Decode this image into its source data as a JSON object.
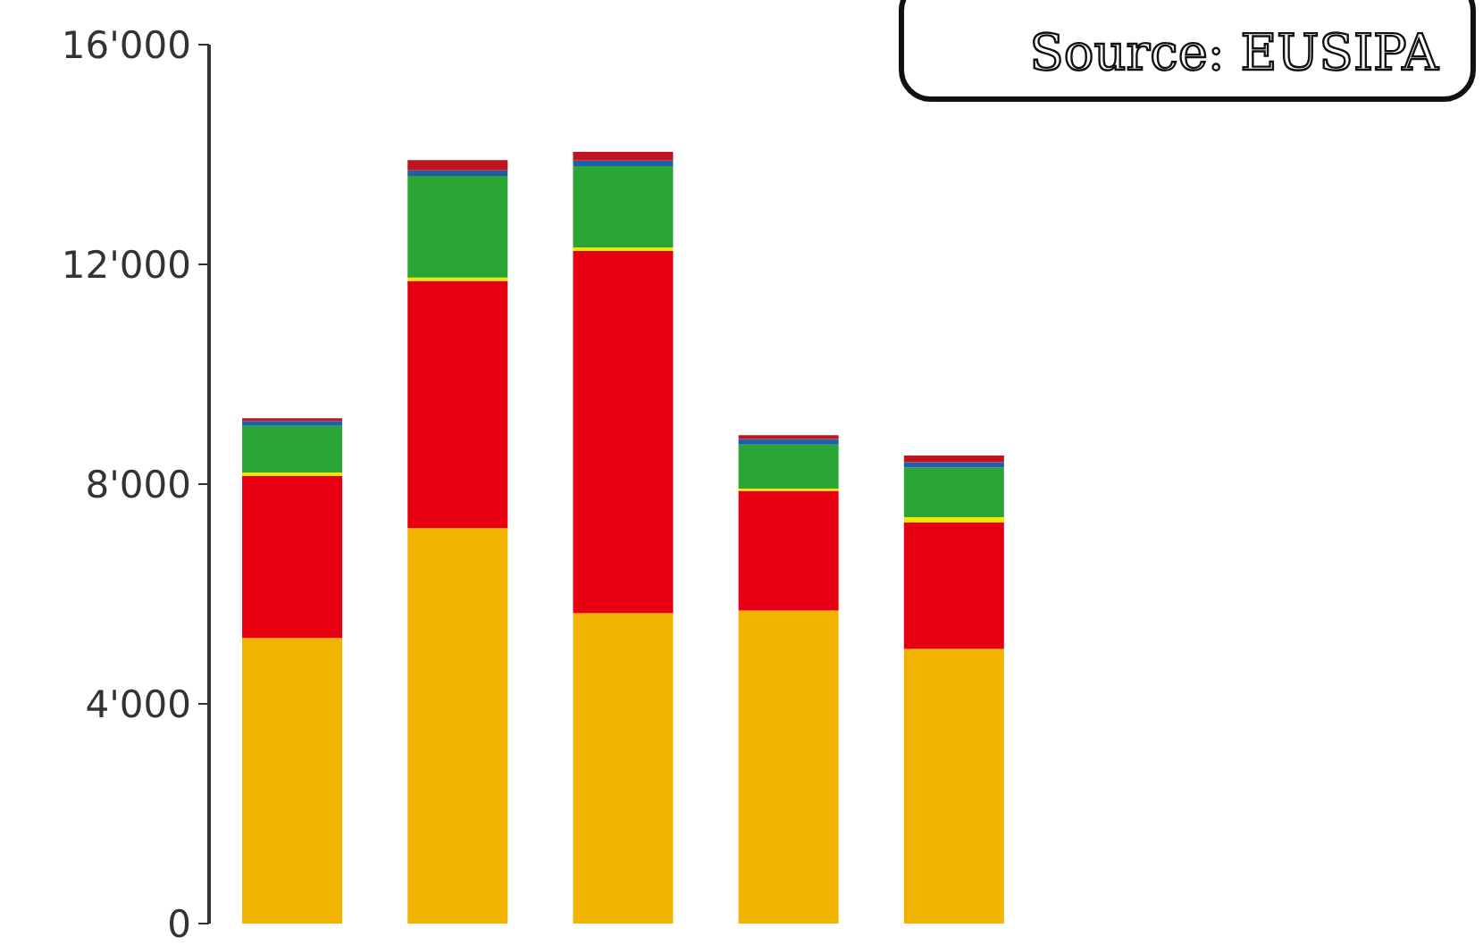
{
  "chart_data": {
    "type": "bar",
    "stacked": true,
    "categories": [
      null,
      null,
      null,
      null,
      null
    ],
    "series": [
      {
        "color": "#f0b400",
        "values": [
          5200,
          7200,
          5650,
          5700,
          5000
        ]
      },
      {
        "color": "#e60012",
        "values": [
          2950,
          4500,
          6600,
          2180,
          2300
        ]
      },
      {
        "color": "#f5e600",
        "values": [
          60,
          60,
          60,
          40,
          100
        ]
      },
      {
        "color": "#2aa636",
        "values": [
          850,
          1850,
          1480,
          800,
          900
        ]
      },
      {
        "color": "#1f5fa8",
        "values": [
          90,
          100,
          100,
          100,
          100
        ]
      },
      {
        "color": "#c0141e",
        "values": [
          50,
          190,
          160,
          70,
          120
        ]
      }
    ],
    "ylim": [
      0,
      16000
    ],
    "yticks": [
      {
        "value": 0,
        "label": "0"
      },
      {
        "value": 4000,
        "label": "4'000"
      },
      {
        "value": 8000,
        "label": "8'000"
      },
      {
        "value": 12000,
        "label": "12'000"
      },
      {
        "value": 16000,
        "label": "16'000"
      }
    ],
    "tick_labels": "y",
    "grid": false,
    "legend": false,
    "annotations": [
      "Source: EUSIPA"
    ]
  }
}
